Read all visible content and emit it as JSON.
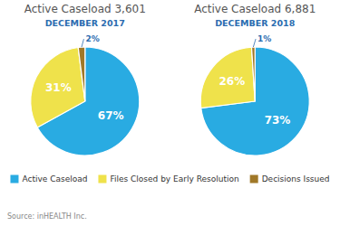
{
  "chart_data": [
    {
      "type": "pie",
      "title": "Active Caseload 3,601",
      "subtitle": "DECEMBER 2017",
      "categories": [
        "Active Caseload",
        "Files Closed by Early Resolution",
        "Decisions Issued"
      ],
      "values": [
        67,
        31,
        2
      ],
      "value_labels": [
        "67%",
        "31%",
        "2%"
      ],
      "colors": [
        "#29ABE2",
        "#EFE24B",
        "#A07828"
      ],
      "data_labels": true,
      "legend": "bottom",
      "annotations": [
        "Source: inHEALTH Inc."
      ]
    },
    {
      "type": "pie",
      "title": "Active Caseload 6,881",
      "subtitle": "DECEMBER 2018",
      "categories": [
        "Active Caseload",
        "Files Closed by Early Resolution",
        "Decisions Issued"
      ],
      "values": [
        73,
        26,
        1
      ],
      "value_labels": [
        "73%",
        "26%",
        "1%"
      ],
      "colors": [
        "#29ABE2",
        "#EFE24B",
        "#A07828"
      ],
      "data_labels": true
    }
  ]
}
